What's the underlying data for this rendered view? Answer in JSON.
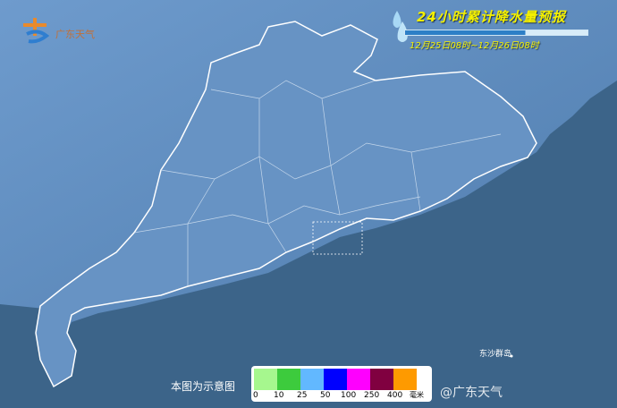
{
  "header": {
    "title": "24小时累计降水量预报",
    "period": "12月25日08时~12月26日08时",
    "logo_text": "广东天气",
    "icon": "water-drop-icon"
  },
  "map": {
    "island_label": "东沙群岛",
    "colors": {
      "sea": "#3c6489",
      "land": "#5b88ba",
      "province": "#6a97c6",
      "border": "#ffffff"
    }
  },
  "legend": {
    "note": "本图为示意图",
    "unit": "毫米",
    "bins": [
      {
        "label": "0",
        "color": "#a6f78e"
      },
      {
        "label": "10",
        "color": "#3dcb3d"
      },
      {
        "label": "25",
        "color": "#62b8ff"
      },
      {
        "label": "50",
        "color": "#0000fe"
      },
      {
        "label": "100",
        "color": "#fe00fe"
      },
      {
        "label": "250",
        "color": "#800040"
      },
      {
        "label": "400",
        "color": "#fe9a00"
      }
    ]
  },
  "watermark": "@广东天气"
}
